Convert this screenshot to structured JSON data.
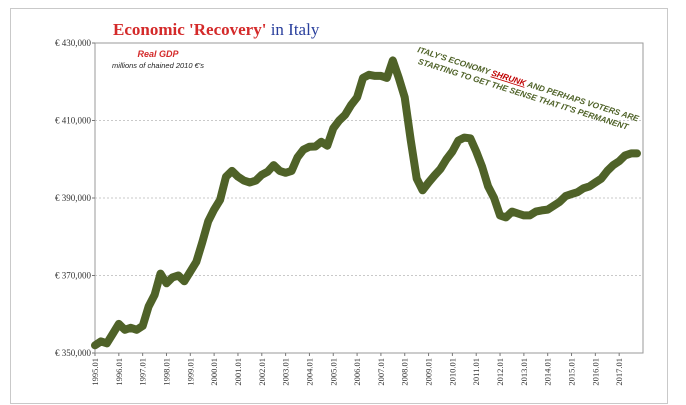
{
  "chart_data": {
    "type": "line",
    "title_part1": "Economic 'Recovery'",
    "title_part2": " in Italy",
    "legend_title": "Real GDP",
    "legend_subtitle": "millions of chained 2010 €'s",
    "annotation_line1_a": "ITALY'S ECONOMY ",
    "annotation_emph": "SHRUNK",
    "annotation_line1_b": " AND PERHAPS VOTERS ARE",
    "annotation_line2": "STARTING TO GET THE SENSE THAT IT'S PERMANENT",
    "ylim": [
      350000,
      430000
    ],
    "yticks": [
      350000,
      370000,
      390000,
      410000,
      430000
    ],
    "ytick_labels": [
      "€ 350,000",
      "€ 370,000",
      "€ 390,000",
      "€ 410,000",
      "€ 430,000"
    ],
    "xticks": [
      "1995.01",
      "1996.01",
      "1997.01",
      "1998.01",
      "1999.01",
      "2000.01",
      "2001.01",
      "2002.01",
      "2003.01",
      "2004.01",
      "2005.01",
      "2006.01",
      "2007.01",
      "2008.01",
      "2009.01",
      "2010.01",
      "2011.01",
      "2012.01",
      "2013.01",
      "2014.01",
      "2015.01",
      "2016.01",
      "2017.01"
    ],
    "x_start": 1995.0,
    "x_end": 2018.0,
    "series": [
      {
        "name": "Real GDP",
        "color": "#4f6228",
        "x": [
          1995.0,
          1995.25,
          1995.5,
          1995.75,
          1996.0,
          1996.25,
          1996.5,
          1996.75,
          1997.0,
          1997.25,
          1997.5,
          1997.75,
          1998.0,
          1998.25,
          1998.5,
          1998.75,
          1999.0,
          1999.25,
          1999.5,
          1999.75,
          2000.0,
          2000.25,
          2000.5,
          2000.75,
          2001.0,
          2001.25,
          2001.5,
          2001.75,
          2002.0,
          2002.25,
          2002.5,
          2002.75,
          2003.0,
          2003.25,
          2003.5,
          2003.75,
          2004.0,
          2004.25,
          2004.5,
          2004.75,
          2005.0,
          2005.25,
          2005.5,
          2005.75,
          2006.0,
          2006.25,
          2006.5,
          2006.75,
          2007.0,
          2007.25,
          2007.5,
          2007.75,
          2008.0,
          2008.25,
          2008.5,
          2008.75,
          2009.0,
          2009.25,
          2009.5,
          2009.75,
          2010.0,
          2010.25,
          2010.5,
          2010.75,
          2011.0,
          2011.25,
          2011.5,
          2011.75,
          2012.0,
          2012.25,
          2012.5,
          2012.75,
          2013.0,
          2013.25,
          2013.5,
          2013.75,
          2014.0,
          2014.25,
          2014.5,
          2014.75,
          2015.0,
          2015.25,
          2015.5,
          2015.75,
          2016.0,
          2016.25,
          2016.5,
          2016.75,
          2017.0,
          2017.25,
          2017.5,
          2017.75
        ],
        "values": [
          352000,
          353000,
          352500,
          355000,
          357500,
          356000,
          356500,
          356000,
          357000,
          362000,
          365000,
          370500,
          368000,
          369500,
          370000,
          368500,
          371000,
          373500,
          378500,
          384000,
          387000,
          389500,
          395500,
          397000,
          395500,
          394500,
          394000,
          394500,
          396000,
          396800,
          398500,
          397000,
          396500,
          397000,
          400500,
          402500,
          403200,
          403300,
          404500,
          403500,
          408000,
          410000,
          411500,
          414000,
          416000,
          421000,
          421800,
          421500,
          421500,
          421000,
          425500,
          421000,
          416000,
          405000,
          395000,
          392000,
          394000,
          395800,
          397500,
          400000,
          402000,
          404800,
          405600,
          405400,
          402000,
          398000,
          393000,
          390000,
          385500,
          385000,
          386500,
          386000,
          385500,
          385500,
          386500,
          386800,
          387000,
          388000,
          389000,
          390500,
          391000,
          391500,
          392500,
          393000,
          394000,
          395000,
          397000,
          398500,
          399500,
          401000,
          401500,
          401500
        ]
      }
    ]
  }
}
